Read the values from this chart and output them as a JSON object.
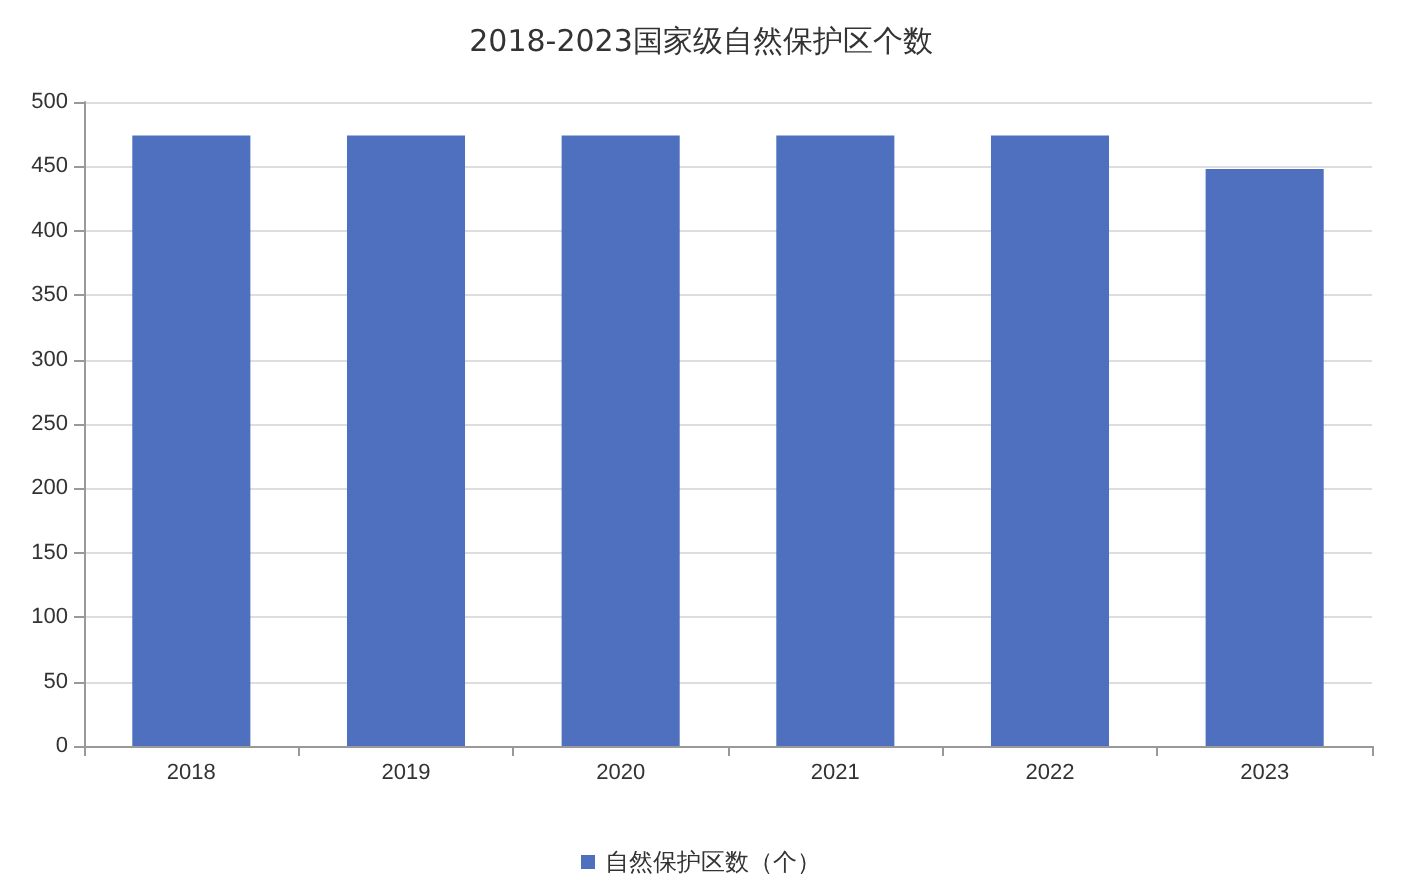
{
  "chart_data": {
    "type": "bar",
    "title": "2018-2023国家级自然保护区个数",
    "categories": [
      "2018",
      "2019",
      "2020",
      "2021",
      "2022",
      "2023"
    ],
    "series": [
      {
        "name": "自然保护区数（个）",
        "color": "#4e70be",
        "values": [
          474,
          474,
          474,
          474,
          474,
          448
        ]
      }
    ],
    "ylim": [
      0,
      500
    ],
    "yticks": [
      0,
      50,
      100,
      150,
      200,
      250,
      300,
      350,
      400,
      450,
      500
    ],
    "grid": "y",
    "legend": "bottom"
  }
}
